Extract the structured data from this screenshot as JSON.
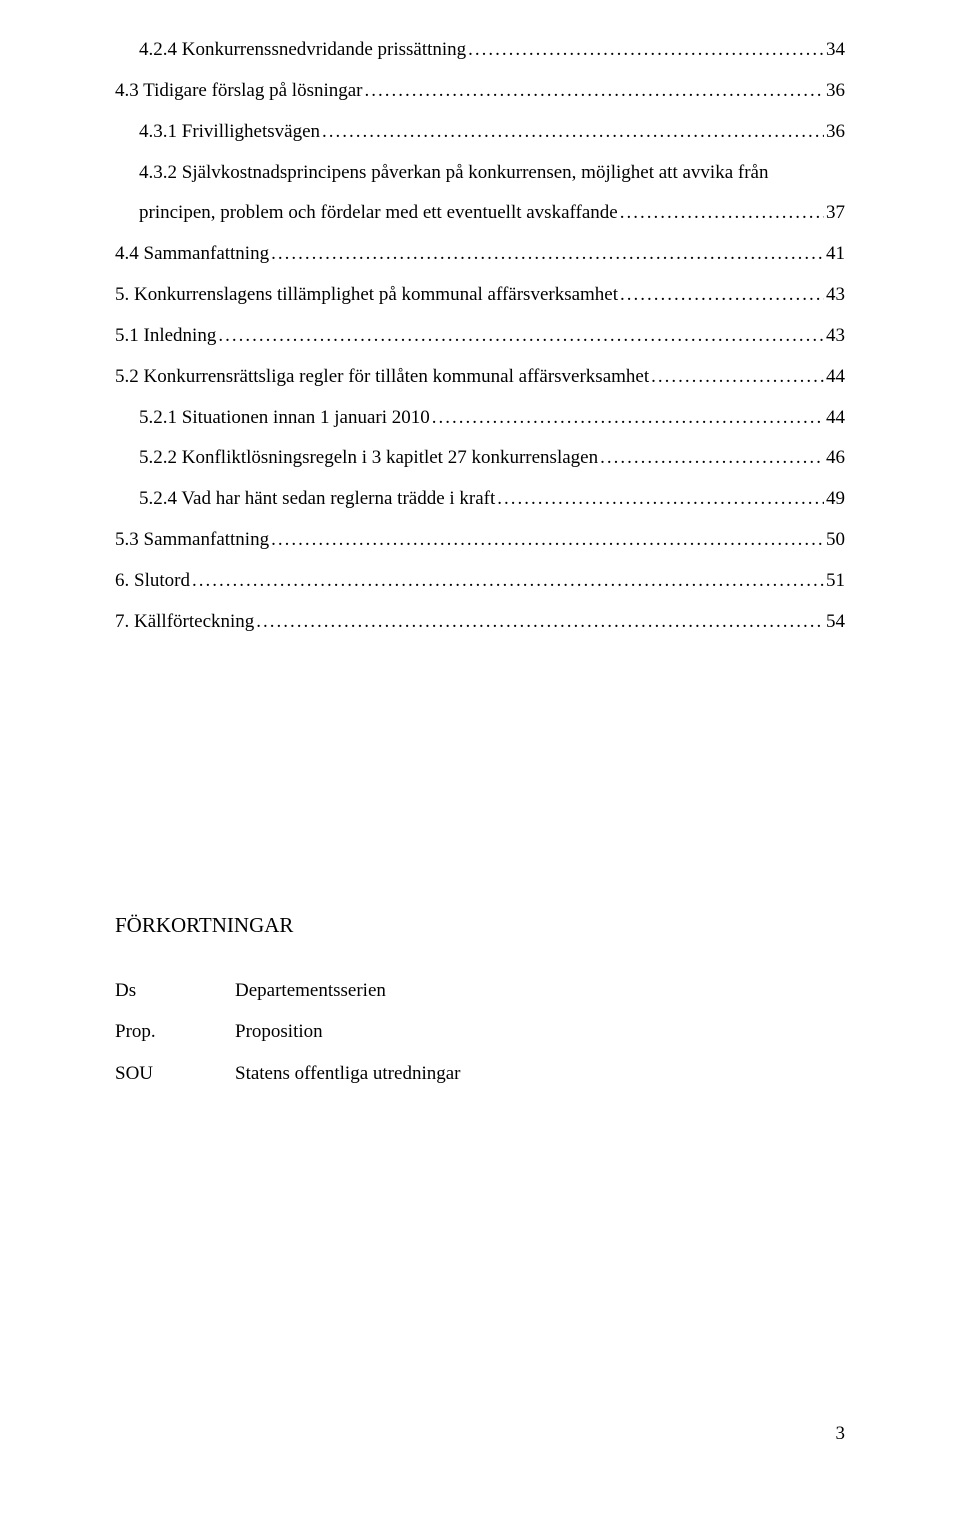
{
  "toc": [
    {
      "indent": 1,
      "label": "4.2.4 Konkurrenssnedvridande prissättning",
      "page": "34"
    },
    {
      "indent": 0,
      "label": "4.3 Tidigare förslag på lösningar",
      "page": "36"
    },
    {
      "indent": 1,
      "label": "4.3.1 Frivillighetsvägen",
      "page": "36"
    },
    {
      "indent": 1,
      "label": "4.3.2 Självkostnadsprincipens påverkan på konkurrensen, möjlighet att avvika från principen, problem och fördelar med ett eventuellt avskaffande",
      "page": "37"
    },
    {
      "indent": 0,
      "label": "4.4 Sammanfattning",
      "page": "41"
    },
    {
      "indent": 0,
      "label": "5. Konkurrenslagens tillämplighet på kommunal affärsverksamhet",
      "page": "43"
    },
    {
      "indent": 0,
      "label": "5.1 Inledning",
      "page": "43"
    },
    {
      "indent": 0,
      "label": "5.2 Konkurrensrättsliga regler för tillåten kommunal affärsverksamhet",
      "page": "44"
    },
    {
      "indent": 1,
      "label": "5.2.1 Situationen innan 1 januari 2010",
      "page": "44"
    },
    {
      "indent": 1,
      "label": "5.2.2 Konfliktlösningsregeln i 3 kapitlet 27 konkurrenslagen",
      "page": "46"
    },
    {
      "indent": 1,
      "label": "5.2.4 Vad har hänt sedan reglerna trädde i kraft",
      "page": "49"
    },
    {
      "indent": 0,
      "label": "5.3 Sammanfattning",
      "page": "50"
    },
    {
      "indent": 0,
      "label": "6. Slutord",
      "page": "51"
    },
    {
      "indent": 0,
      "label": "7. Källförteckning",
      "page": "54"
    }
  ],
  "abbr": {
    "heading": "FÖRKORTNINGAR",
    "rows": [
      {
        "key": "Ds",
        "val": "Departementsserien"
      },
      {
        "key": "Prop.",
        "val": "Proposition"
      },
      {
        "key": "SOU",
        "val": "Statens offentliga utredningar"
      }
    ]
  },
  "pageNumber": "3"
}
